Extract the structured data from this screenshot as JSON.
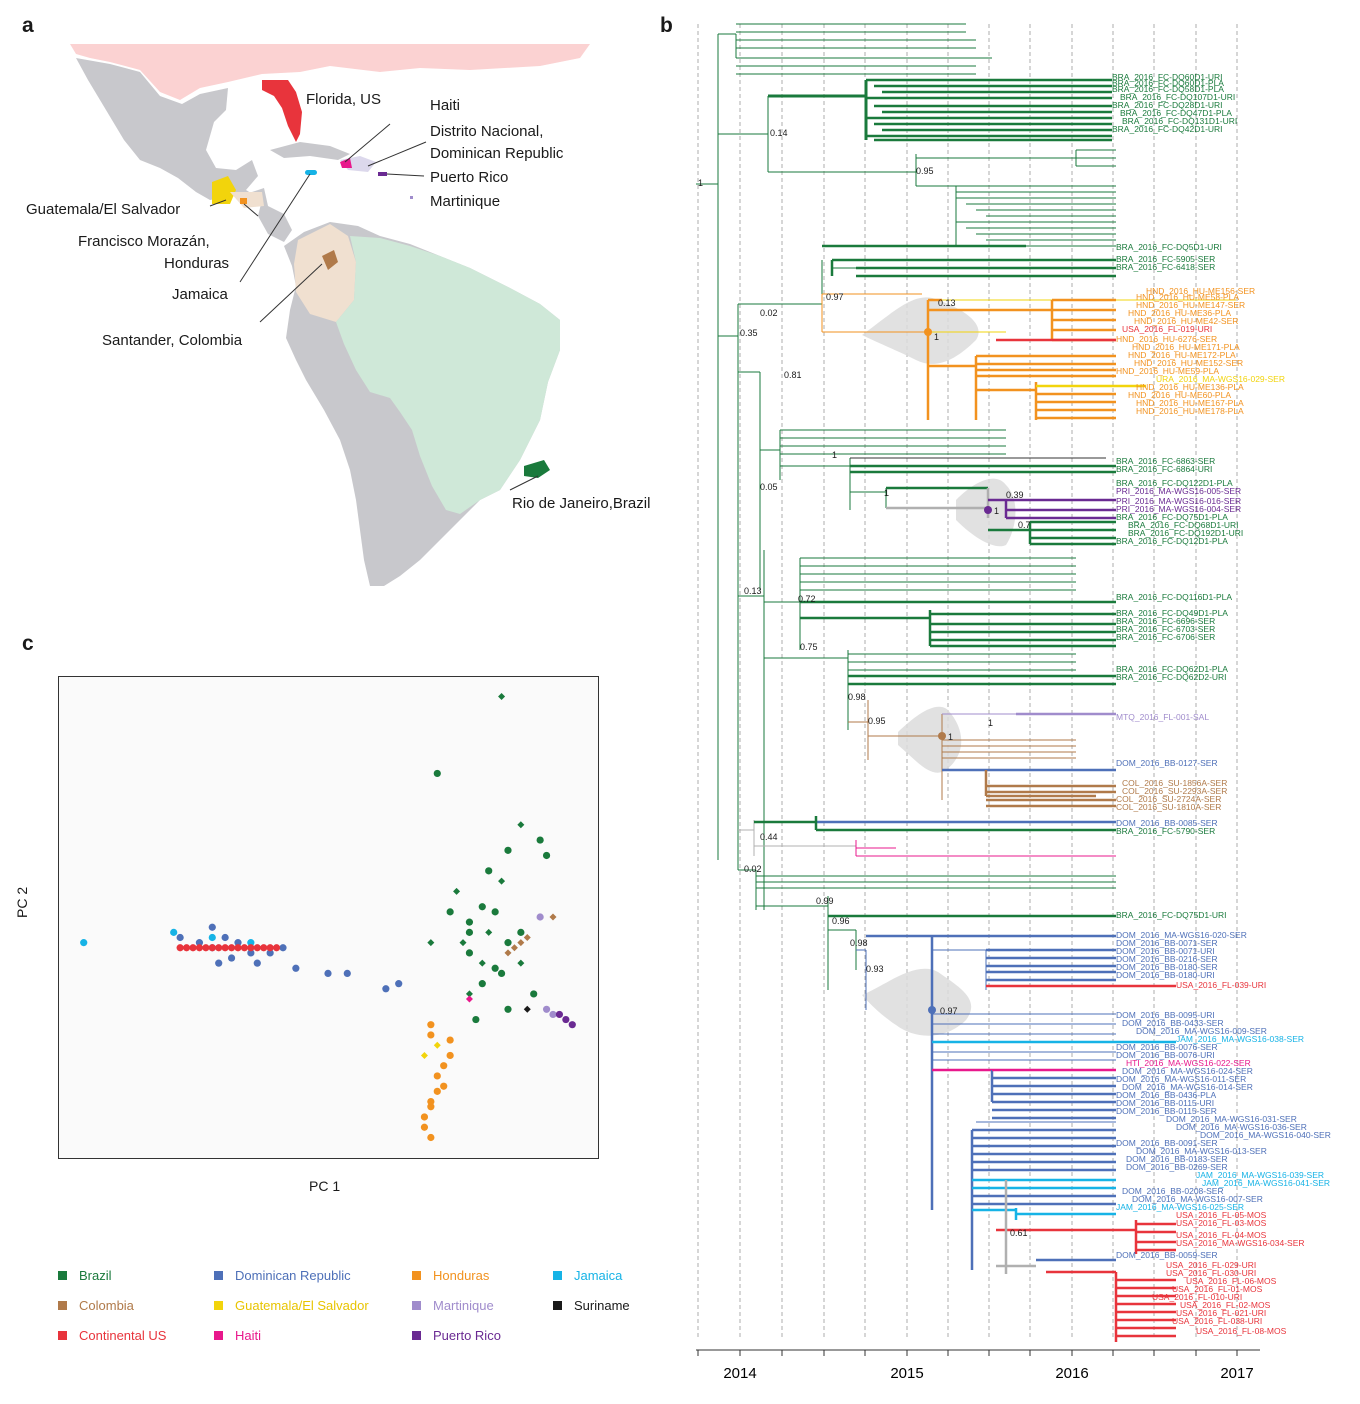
{
  "panels": {
    "a": "a",
    "b": "b",
    "c": "c"
  },
  "colors": {
    "brazil": "#1a7a3c",
    "dominican": "#4e70b8",
    "honduras": "#f2921f",
    "jamaica": "#16b3e6",
    "colombia": "#b07a4a",
    "guatemala": "#f2d40c",
    "martinique": "#a08ccc",
    "suriname": "#1a1a1a",
    "continental_us": "#e8343c",
    "haiti": "#e8188c",
    "puerto_rico": "#6a2a92",
    "map_land": "#c8c8cc",
    "map_us": "#fbd2d2",
    "map_brazil": "#cfe8d8",
    "map_colombia": "#f0e0d0",
    "tree_grey": "#b0b0b0"
  },
  "map": {
    "labels": {
      "florida": "Florida, US",
      "haiti": "Haiti",
      "distrito_1": "Distrito Nacional,",
      "distrito_2": "Dominican Republic",
      "puerto_rico": "Puerto Rico",
      "martinique": "Martinique",
      "guatemala": "Guatemala/El Salvador",
      "francisco_1": "Francisco Morazán,",
      "francisco_2": "Honduras",
      "jamaica": "Jamaica",
      "santander": "Santander, Colombia",
      "rio": "Rio de Janeiro,Brazil"
    }
  },
  "tree": {
    "support": {
      "s_root": "1",
      "s_014": "0.14",
      "s_095a": "0.95",
      "s_097": "0.97",
      "s_013a": "0.13",
      "s_1hnd": "1",
      "s_002a": "0.02",
      "s_035": "0.35",
      "s_081": "0.81",
      "s_1b": "1",
      "s_005": "0.05",
      "s_1c": "1",
      "s_039": "0.39",
      "s_1pri": "1",
      "s_07": "0.7",
      "s_013b": "0.13",
      "s_072": "0.72",
      "s_075": "0.75",
      "s_098a": "0.98",
      "s_095b": "0.95",
      "s_1mtq": "1",
      "s_1col": "1",
      "s_044": "0.44",
      "s_002b": "0.02",
      "s_099": "0.99",
      "s_096": "0.96",
      "s_098b": "0.98",
      "s_093": "0.93",
      "s_097b": "0.97",
      "s_061": "0.61"
    },
    "taxa": {
      "bra1": "BRA_2016_FC-DQ60D1-URI",
      "bra2": "BRA_2016_FC-DQ60D1-PLA",
      "bra3": "BRA_2016_FC-DQ58D1-PLA",
      "bra4": "BRA_2016_FC-DQ107D1-URI",
      "bra5": "BRA_2016_FC-DQ28D1-URI",
      "bra6": "BRA_2016_FC-DQ47D1-PLA",
      "bra7": "BRA_2016_FC-DQ131D1-URI",
      "bra8": "BRA_2016_FC-DQ42D1-URI",
      "bra9": "BRA_2016_FC-DQ5D1-URI",
      "bra10": "BRA_2016_FC-5905-SER",
      "bra11": "BRA_2016_FC-6418-SER",
      "hnd1": "HND_2016_HU-ME156-SER",
      "hnd2": "HND_2016_HU-ME58-PLA",
      "hnd3": "HND_2016_HU-ME147-SER",
      "hnd4": "HND_2016_HU-ME36-PLA",
      "hnd5": "HND_2016_HU-ME42-SER",
      "usa1": "USA_2016_FL-019-URI",
      "hnd6": "HND_2016_HU-6276-SER",
      "hnd7": "HND_2016_HU-ME171-PLA",
      "hnd8": "HND_2016_HU-ME172-PLA",
      "hnd9": "HND_2016_HU-ME152-SER",
      "hnd10": "HND_2016_HU-ME59-PLA",
      "gtm1": "URA_2016_MA-WGS16-029-SER",
      "hnd11": "HND_2016_HU-ME136-PLA",
      "hnd12": "HND_2016_HU-ME60-PLA",
      "hnd13": "HND_2016_HU-ME167-PLA",
      "hnd14": "HND_2016_HU-ME178-PLA",
      "bra12": "BRA_2016_FC-6863-SER",
      "bra13": "BRA_2016_FC-6864-URI",
      "bra14": "BRA_2016_FC-DQ122D1-PLA",
      "pri1": "PRI_2016_MA-WGS16-005-SER",
      "pri2": "PRI_2016_MA-WGS16-016-SER",
      "pri3": "PRI_2016_MA-WGS16-004-SER",
      "bra15": "BRA_2016_FC-DQ75D1-PLA",
      "bra16": "BRA_2016_FC-DQ68D1-URI",
      "bra17": "BRA_2016_FC-DQ192D1-URI",
      "bra18": "BRA_2016_FC-DQ12D1-PLA",
      "bra19": "BRA_2016_FC-DQ116D1-PLA",
      "bra20": "BRA_2016_FC-DQ49D1-PLA",
      "bra21": "BRA_2016_FC-6696-SER",
      "bra22": "BRA_2016_FC-6703-SER",
      "bra23": "BRA_2016_FC-6706-SER",
      "bra24": "BRA_2016_FC-DQ62D1-PLA",
      "bra25": "BRA_2016_FC-DQ62D2-URI",
      "mtq1": "MTQ_2016_FL-001-SAL",
      "dom1": "DOM_2016_BB-0127-SER",
      "col1": "COL_2016_SU-1856A-SER",
      "col2": "COL_2016_SU-2293A-SER",
      "col3": "COL_2016_SU-2724A-SER",
      "col4": "COL_2016_SU-1810A-SER",
      "dom2": "DOM_2016_BB-0085-SER",
      "bra26": "BRA_2016_FC-5790-SER",
      "bra27": "BRA_2016_FC-DQ75D1-URI",
      "dom3": "DOM_2016_MA-WGS16-020-SER",
      "dom4": "DOM_2016_BB-0071-SER",
      "dom5": "DOM_2016_BB-0071-URI",
      "dom6": "DOM_2016_BB-0216-SER",
      "dom7": "DOM_2016_BB-0180-SER",
      "dom8": "DOM_2016_BB-0180-URI",
      "usa2": "USA_2016_FL-039-URI",
      "dom9": "DOM_2016_BB-0095-URI",
      "dom10": "DOM_2016_BB-0433-SER",
      "dom11": "DOM_2016_MA-WGS16-009-SER",
      "jam1": "JAM_2016_MA-WGS16-038-SER",
      "dom12": "DOM_2016_BB-0076-SER",
      "dom13": "DOM_2016_BB-0076-URI",
      "hti1": "HTI_2016_MA-WGS16-022-SER",
      "dom14": "DOM_2016_MA-WGS16-024-SER",
      "dom15": "DOM_2016_MA-WGS16-011-SER",
      "dom16": "DOM_2016_MA-WGS16-014-SER",
      "dom17": "DOM_2016_BB-0436-PLA",
      "dom18": "DOM_2016_BB-0115-URI",
      "dom19": "DOM_2016_BB-0115-SER",
      "dom20": "DOM_2016_MA-WGS16-031-SER",
      "dom21": "DOM_2016_MA-WGS16-036-SER",
      "dom22": "DOM_2016_MA-WGS16-040-SER",
      "dom23": "DOM_2016_BB-0091-SER",
      "dom24": "DOM_2016_MA-WGS16-013-SER",
      "dom25": "DOM_2016_BB-0183-SER",
      "dom26": "DOM_2016_BB-0269-SER",
      "jam2": "JAM_2016_MA-WGS16-039-SER",
      "jam3": "JAM_2016_MA-WGS16-041-SER",
      "dom27": "DOM_2016_BB-0208-SER",
      "dom28": "DOM_2016_MA-WGS16-007-SER",
      "jam4": "JAM_2016_MA-WGS16-025-SER",
      "usa3": "USA_2016_FL-05-MOS",
      "usa4": "USA_2016_FL-03-MOS",
      "usa5": "USA_2016_FL-04-MOS",
      "usa6": "USA_2016_MA-WGS16-034-SER",
      "dom29": "DOM_2016_BB-0059-SER",
      "usa7": "USA_2016_FL-029-URI",
      "usa8": "USA_2016_FL-030-URI",
      "usa9": "USA_2016_FL-06-MOS",
      "usa10": "USA_2016_FL-01-MOS",
      "usa11": "USA_2016_FL-010-URI",
      "usa12": "USA_2016_FL-02-MOS",
      "usa13": "USA_2016_FL-021-URI",
      "usa14": "USA_2016_FL-038-URI",
      "usa15": "USA_2016_FL-08-MOS"
    },
    "years": [
      "2014",
      "2015",
      "2016",
      "2017"
    ]
  },
  "chart_data": {
    "type": "scatter",
    "xlabel": "PC 1",
    "ylabel": "PC 2",
    "series": [
      {
        "name": "Brazil",
        "marker": "circle+diamond",
        "points": [
          [
            0.63,
            0.88
          ],
          [
            0.53,
            0.73
          ],
          [
            0.69,
            0.6
          ],
          [
            0.66,
            0.63
          ],
          [
            0.64,
            0.58
          ],
          [
            0.61,
            0.54
          ],
          [
            0.63,
            0.52
          ],
          [
            0.7,
            0.57
          ],
          [
            0.55,
            0.46
          ],
          [
            0.56,
            0.5
          ],
          [
            0.58,
            0.44
          ],
          [
            0.58,
            0.42
          ],
          [
            0.61,
            0.42
          ],
          [
            0.62,
            0.46
          ],
          [
            0.58,
            0.38
          ],
          [
            0.6,
            0.36
          ],
          [
            0.62,
            0.35
          ],
          [
            0.64,
            0.4
          ],
          [
            0.57,
            0.4
          ],
          [
            0.66,
            0.42
          ],
          [
            0.6,
            0.47
          ],
          [
            0.52,
            0.4
          ],
          [
            0.63,
            0.34
          ],
          [
            0.6,
            0.32
          ],
          [
            0.58,
            0.3
          ],
          [
            0.59,
            0.25
          ],
          [
            0.64,
            0.27
          ],
          [
            0.66,
            0.36
          ],
          [
            0.68,
            0.3
          ]
        ]
      },
      {
        "name": "Dominican Republic",
        "points": [
          [
            0.13,
            0.41
          ],
          [
            0.16,
            0.4
          ],
          [
            0.18,
            0.39
          ],
          [
            0.2,
            0.41
          ],
          [
            0.22,
            0.4
          ],
          [
            0.24,
            0.38
          ],
          [
            0.27,
            0.38
          ],
          [
            0.29,
            0.39
          ],
          [
            0.18,
            0.43
          ],
          [
            0.19,
            0.36
          ],
          [
            0.21,
            0.37
          ],
          [
            0.25,
            0.36
          ],
          [
            0.31,
            0.35
          ],
          [
            0.36,
            0.34
          ],
          [
            0.39,
            0.34
          ],
          [
            0.47,
            0.32
          ],
          [
            0.45,
            0.31
          ]
        ]
      },
      {
        "name": "Honduras",
        "points": [
          [
            0.52,
            0.24
          ],
          [
            0.52,
            0.22
          ],
          [
            0.55,
            0.21
          ],
          [
            0.55,
            0.18
          ],
          [
            0.54,
            0.16
          ],
          [
            0.53,
            0.14
          ],
          [
            0.53,
            0.11
          ],
          [
            0.52,
            0.08
          ],
          [
            0.51,
            0.06
          ],
          [
            0.51,
            0.04
          ],
          [
            0.52,
            0.02
          ],
          [
            0.52,
            0.09
          ],
          [
            0.54,
            0.12
          ]
        ]
      },
      {
        "name": "Jamaica",
        "points": [
          [
            -0.02,
            0.4
          ],
          [
            0.12,
            0.42
          ],
          [
            0.18,
            0.41
          ],
          [
            0.24,
            0.4
          ]
        ]
      },
      {
        "name": "Colombia",
        "points": [
          [
            0.64,
            0.38
          ],
          [
            0.65,
            0.39
          ],
          [
            0.66,
            0.4
          ],
          [
            0.67,
            0.41
          ],
          [
            0.71,
            0.45
          ]
        ]
      },
      {
        "name": "Guatemala/El Salvador",
        "points": [
          [
            0.51,
            0.18
          ],
          [
            0.53,
            0.2
          ]
        ]
      },
      {
        "name": "Martinique",
        "points": [
          [
            0.69,
            0.45
          ],
          [
            0.7,
            0.27
          ],
          [
            0.71,
            0.26
          ]
        ]
      },
      {
        "name": "Suriname",
        "points": [
          [
            0.67,
            0.27
          ]
        ]
      },
      {
        "name": "Continental US",
        "points": [
          [
            0.13,
            0.39
          ],
          [
            0.14,
            0.39
          ],
          [
            0.15,
            0.39
          ],
          [
            0.16,
            0.39
          ],
          [
            0.17,
            0.39
          ],
          [
            0.18,
            0.39
          ],
          [
            0.19,
            0.39
          ],
          [
            0.2,
            0.39
          ],
          [
            0.21,
            0.39
          ],
          [
            0.22,
            0.39
          ],
          [
            0.23,
            0.39
          ],
          [
            0.24,
            0.39
          ],
          [
            0.25,
            0.39
          ],
          [
            0.26,
            0.39
          ],
          [
            0.27,
            0.39
          ],
          [
            0.28,
            0.39
          ]
        ]
      },
      {
        "name": "Haiti",
        "points": [
          [
            0.58,
            0.29
          ]
        ]
      },
      {
        "name": "Puerto Rico",
        "points": [
          [
            0.72,
            0.26
          ],
          [
            0.73,
            0.25
          ],
          [
            0.74,
            0.24
          ]
        ]
      }
    ]
  },
  "legend": {
    "brazil": "Brazil",
    "dominican": "Dominican Republic",
    "honduras": "Honduras",
    "jamaica": "Jamaica",
    "colombia": "Colombia",
    "guatemala": "Guatemala/El Salvador",
    "martinique": "Martinique",
    "suriname": "Suriname",
    "continental_us": "Continental US",
    "haiti": "Haiti",
    "puerto_rico": "Puerto Rico"
  }
}
